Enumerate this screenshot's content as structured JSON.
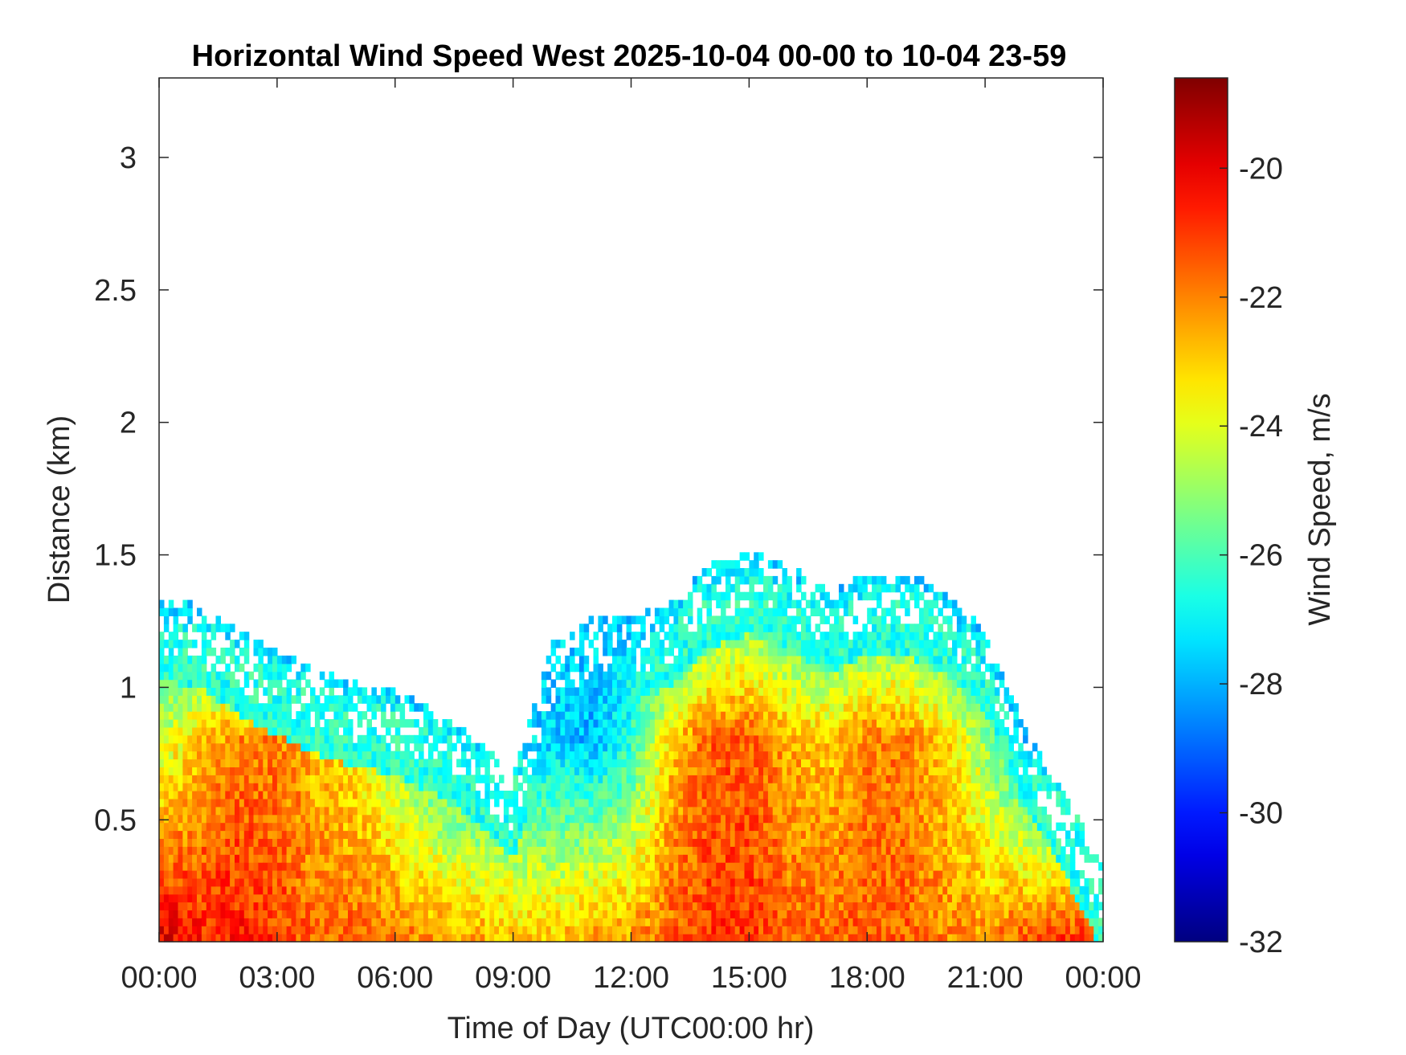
{
  "chart_data": {
    "type": "heatmap",
    "title": "Horizontal Wind Speed West 2025-10-04 00-00 to 10-04 23-59",
    "xlabel": "Time of Day (UTC00:00 hr)",
    "ylabel": "Distance (km)",
    "colorbar_label": "Wind Speed, m/s",
    "x_unit": "hours UTC",
    "xlim": [
      0,
      24
    ],
    "ylim": [
      0.04,
      3.3
    ],
    "x_ticks": [
      {
        "value": 0,
        "label": "00:00"
      },
      {
        "value": 3,
        "label": "03:00"
      },
      {
        "value": 6,
        "label": "06:00"
      },
      {
        "value": 9,
        "label": "09:00"
      },
      {
        "value": 12,
        "label": "12:00"
      },
      {
        "value": 15,
        "label": "15:00"
      },
      {
        "value": 18,
        "label": "18:00"
      },
      {
        "value": 21,
        "label": "21:00"
      },
      {
        "value": 24,
        "label": "00:00"
      }
    ],
    "y_ticks": [
      {
        "value": 0.5,
        "label": "0.5"
      },
      {
        "value": 1,
        "label": "1"
      },
      {
        "value": 1.5,
        "label": "1.5"
      },
      {
        "value": 2,
        "label": "2"
      },
      {
        "value": 2.5,
        "label": "2.5"
      },
      {
        "value": 3,
        "label": "3"
      }
    ],
    "colorbar": {
      "range": [
        -32,
        -18.6
      ],
      "colormap": "jet",
      "ticks": [
        {
          "value": -20,
          "label": "-20"
        },
        {
          "value": -22,
          "label": "-22"
        },
        {
          "value": -24,
          "label": "-24"
        },
        {
          "value": -26,
          "label": "-26"
        },
        {
          "value": -28,
          "label": "-28"
        },
        {
          "value": -30,
          "label": "-30"
        },
        {
          "value": -32,
          "label": "-32"
        }
      ]
    },
    "grid": false,
    "series": [
      {
        "time_hours": [
          0,
          1,
          2,
          3,
          4,
          5,
          6,
          7,
          8,
          9,
          10,
          11,
          12,
          13,
          14,
          15,
          16,
          17,
          18,
          19,
          20,
          21,
          22,
          23,
          24
        ],
        "max_echo_height_km": [
          1.33,
          1.3,
          1.2,
          1.12,
          1.05,
          1.0,
          0.97,
          0.9,
          0.8,
          0.65,
          1.15,
          1.25,
          1.25,
          1.3,
          1.45,
          1.5,
          1.45,
          1.35,
          1.42,
          1.42,
          1.35,
          1.2,
          0.85,
          0.6,
          0.3
        ],
        "wind_speed_near_surface_m_s": [
          -19.5,
          -20.5,
          -20.5,
          -21.0,
          -21.5,
          -21.5,
          -21.5,
          -22.0,
          -22.0,
          -22.5,
          -22.5,
          -22.0,
          -22.0,
          -21.5,
          -21.0,
          -21.0,
          -21.5,
          -21.5,
          -21.5,
          -21.5,
          -22.0,
          -22.0,
          -21.0,
          -20.5,
          -20.5
        ],
        "wind_speed_at_0_8km_m_s": [
          -24.5,
          -23.0,
          -22.0,
          -22.0,
          -23.0,
          -23.5,
          -25.0,
          -26.5,
          -27.5,
          null,
          -27.5,
          -28.0,
          -26.5,
          -23.0,
          -21.5,
          -21.5,
          -22.5,
          -23.0,
          -22.0,
          -22.0,
          -23.0,
          -25.0,
          -27.5,
          -28.5,
          null
        ],
        "wind_speed_at_echo_top_m_s": -27.5
      }
    ]
  }
}
